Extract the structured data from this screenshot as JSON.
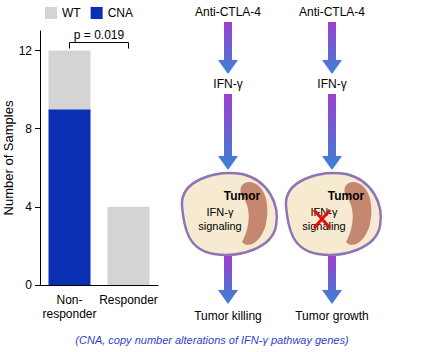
{
  "chart_data": {
    "type": "bar",
    "stacked": true,
    "categories": [
      "Non-responder",
      "Responder"
    ],
    "series": [
      {
        "name": "CNA",
        "color": "#0b2fb3",
        "values": [
          9,
          0
        ]
      },
      {
        "name": "WT",
        "color": "#d4d4d4",
        "values": [
          3,
          4
        ]
      }
    ],
    "y_label": "Number of Samples",
    "ylim": [
      0,
      13
    ],
    "yticks": [
      0,
      4,
      8,
      12
    ],
    "legend": "top-left",
    "annotations": [
      {
        "text": "p = 0.019",
        "between": [
          "Non-responder",
          "Responder"
        ]
      }
    ]
  },
  "diagram": {
    "columns": [
      {
        "steps": [
          "Anti-CTLA-4",
          "IFN-γ"
        ],
        "cell": {
          "label": "Tumor",
          "pathway": [
            "IFN-γ",
            "signaling"
          ],
          "blocked": false
        },
        "outcome": "Tumor killing"
      },
      {
        "steps": [
          "Anti-CTLA-4",
          "IFN-γ"
        ],
        "cell": {
          "label": "Tumor",
          "pathway": [
            "IFN-γ",
            "signaling"
          ],
          "blocked": true
        },
        "outcome": "Tumor growth"
      }
    ],
    "caption": "(CNA, copy number alterations of IFN-γ pathway genes)"
  }
}
